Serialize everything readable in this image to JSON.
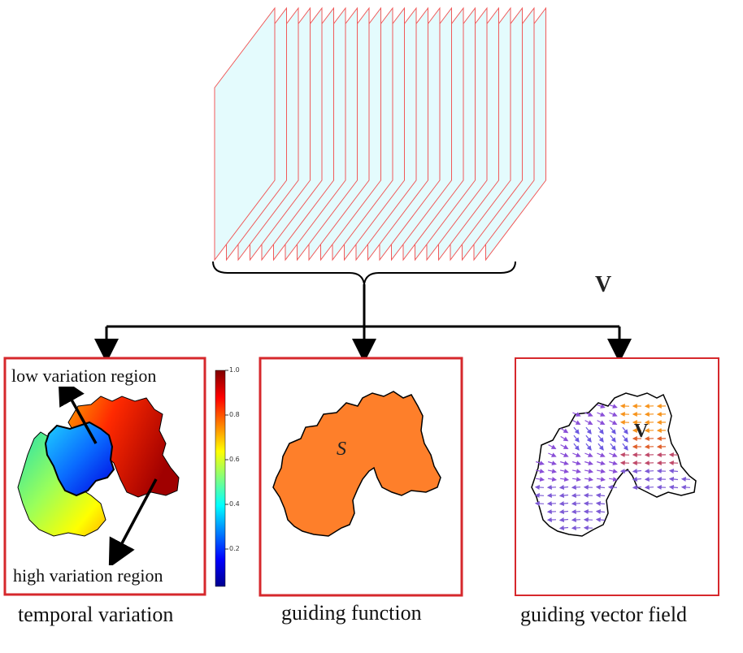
{
  "stack_label": "V",
  "panels": [
    {
      "caption": "temporal variation",
      "annotations": {
        "low": "low variation region",
        "high": "high variation region"
      },
      "colorbar": {
        "ticks": [
          "1.0",
          "0.8",
          "0.6",
          "0.4",
          "0.2"
        ]
      }
    },
    {
      "caption": "guiding function",
      "symbol": "S"
    },
    {
      "caption": "guiding vector field",
      "symbol": "V"
    }
  ]
}
